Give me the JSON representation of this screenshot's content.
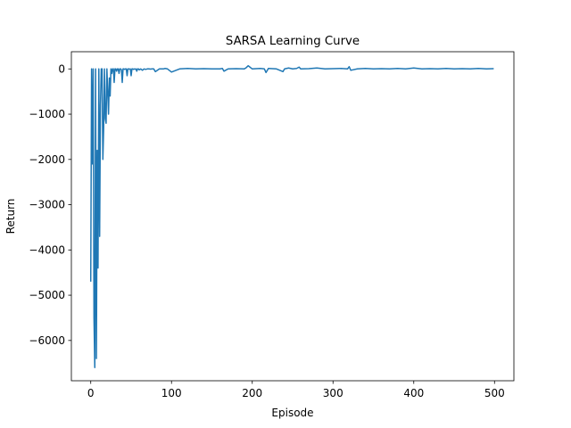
{
  "chart_data": {
    "type": "line",
    "title": "SARSA Learning Curve",
    "xlabel": "Episode",
    "ylabel": "Return",
    "xlim": [
      -24,
      524
    ],
    "ylim": [
      -6890,
      380
    ],
    "xticks": [
      0,
      100,
      200,
      300,
      400,
      500
    ],
    "yticks": [
      0,
      -1000,
      -2000,
      -3000,
      -4000,
      -5000,
      -6000
    ],
    "xtick_labels": [
      "0",
      "100",
      "200",
      "300",
      "400",
      "500"
    ],
    "ytick_labels": [
      "0",
      "−1000",
      "−2000",
      "−3000",
      "−4000",
      "−5000",
      "−6000"
    ],
    "grid": false,
    "legend": "none",
    "series": [
      {
        "color": "#1f77b4",
        "x": [
          0,
          1,
          2,
          3,
          4,
          5,
          6,
          7,
          8,
          9,
          10,
          11,
          12,
          13,
          14,
          15,
          16,
          17,
          18,
          19,
          20,
          21,
          22,
          23,
          24,
          25,
          26,
          27,
          28,
          29,
          30,
          31,
          32,
          33,
          34,
          35,
          36,
          37,
          38,
          39,
          40,
          41,
          42,
          43,
          44,
          45,
          46,
          47,
          48,
          49,
          50,
          51,
          52,
          53,
          54,
          55,
          56,
          57,
          58,
          59,
          60,
          62,
          64,
          66,
          68,
          70,
          72,
          74,
          76,
          78,
          80,
          85,
          90,
          92,
          95,
          100,
          110,
          120,
          130,
          140,
          150,
          160,
          163,
          165,
          170,
          180,
          190,
          192,
          195,
          200,
          210,
          215,
          217,
          220,
          230,
          238,
          240,
          245,
          250,
          255,
          258,
          260,
          270,
          280,
          290,
          300,
          310,
          318,
          320,
          322,
          330,
          340,
          350,
          360,
          370,
          380,
          390,
          400,
          410,
          420,
          430,
          440,
          450,
          460,
          470,
          480,
          490,
          499
        ],
        "y": [
          -4700,
          0,
          -2100,
          0,
          -5500,
          -6600,
          0,
          -6400,
          -1800,
          -4400,
          0,
          -3700,
          -800,
          0,
          0,
          -2000,
          -1300,
          0,
          -1100,
          -1200,
          0,
          -500,
          -1000,
          -200,
          -600,
          0,
          -100,
          0,
          0,
          -300,
          0,
          0,
          -50,
          0,
          0,
          -100,
          0,
          0,
          -20,
          -300,
          0,
          0,
          -10,
          0,
          0,
          -150,
          0,
          0,
          -5,
          0,
          -150,
          0,
          0,
          -10,
          0,
          -5,
          0,
          -50,
          0,
          0,
          -20,
          0,
          -30,
          0,
          -10,
          0,
          0,
          -5,
          0,
          0,
          -60,
          0,
          0,
          10,
          0,
          -70,
          0,
          10,
          0,
          5,
          0,
          0,
          10,
          -50,
          0,
          5,
          0,
          20,
          70,
          0,
          10,
          0,
          -80,
          10,
          0,
          -60,
          0,
          20,
          0,
          10,
          40,
          0,
          5,
          20,
          0,
          5,
          10,
          0,
          50,
          -30,
          0,
          10,
          0,
          5,
          0,
          10,
          0,
          20,
          0,
          5,
          0,
          10,
          0,
          5,
          0,
          10,
          0,
          5
        ]
      }
    ]
  }
}
